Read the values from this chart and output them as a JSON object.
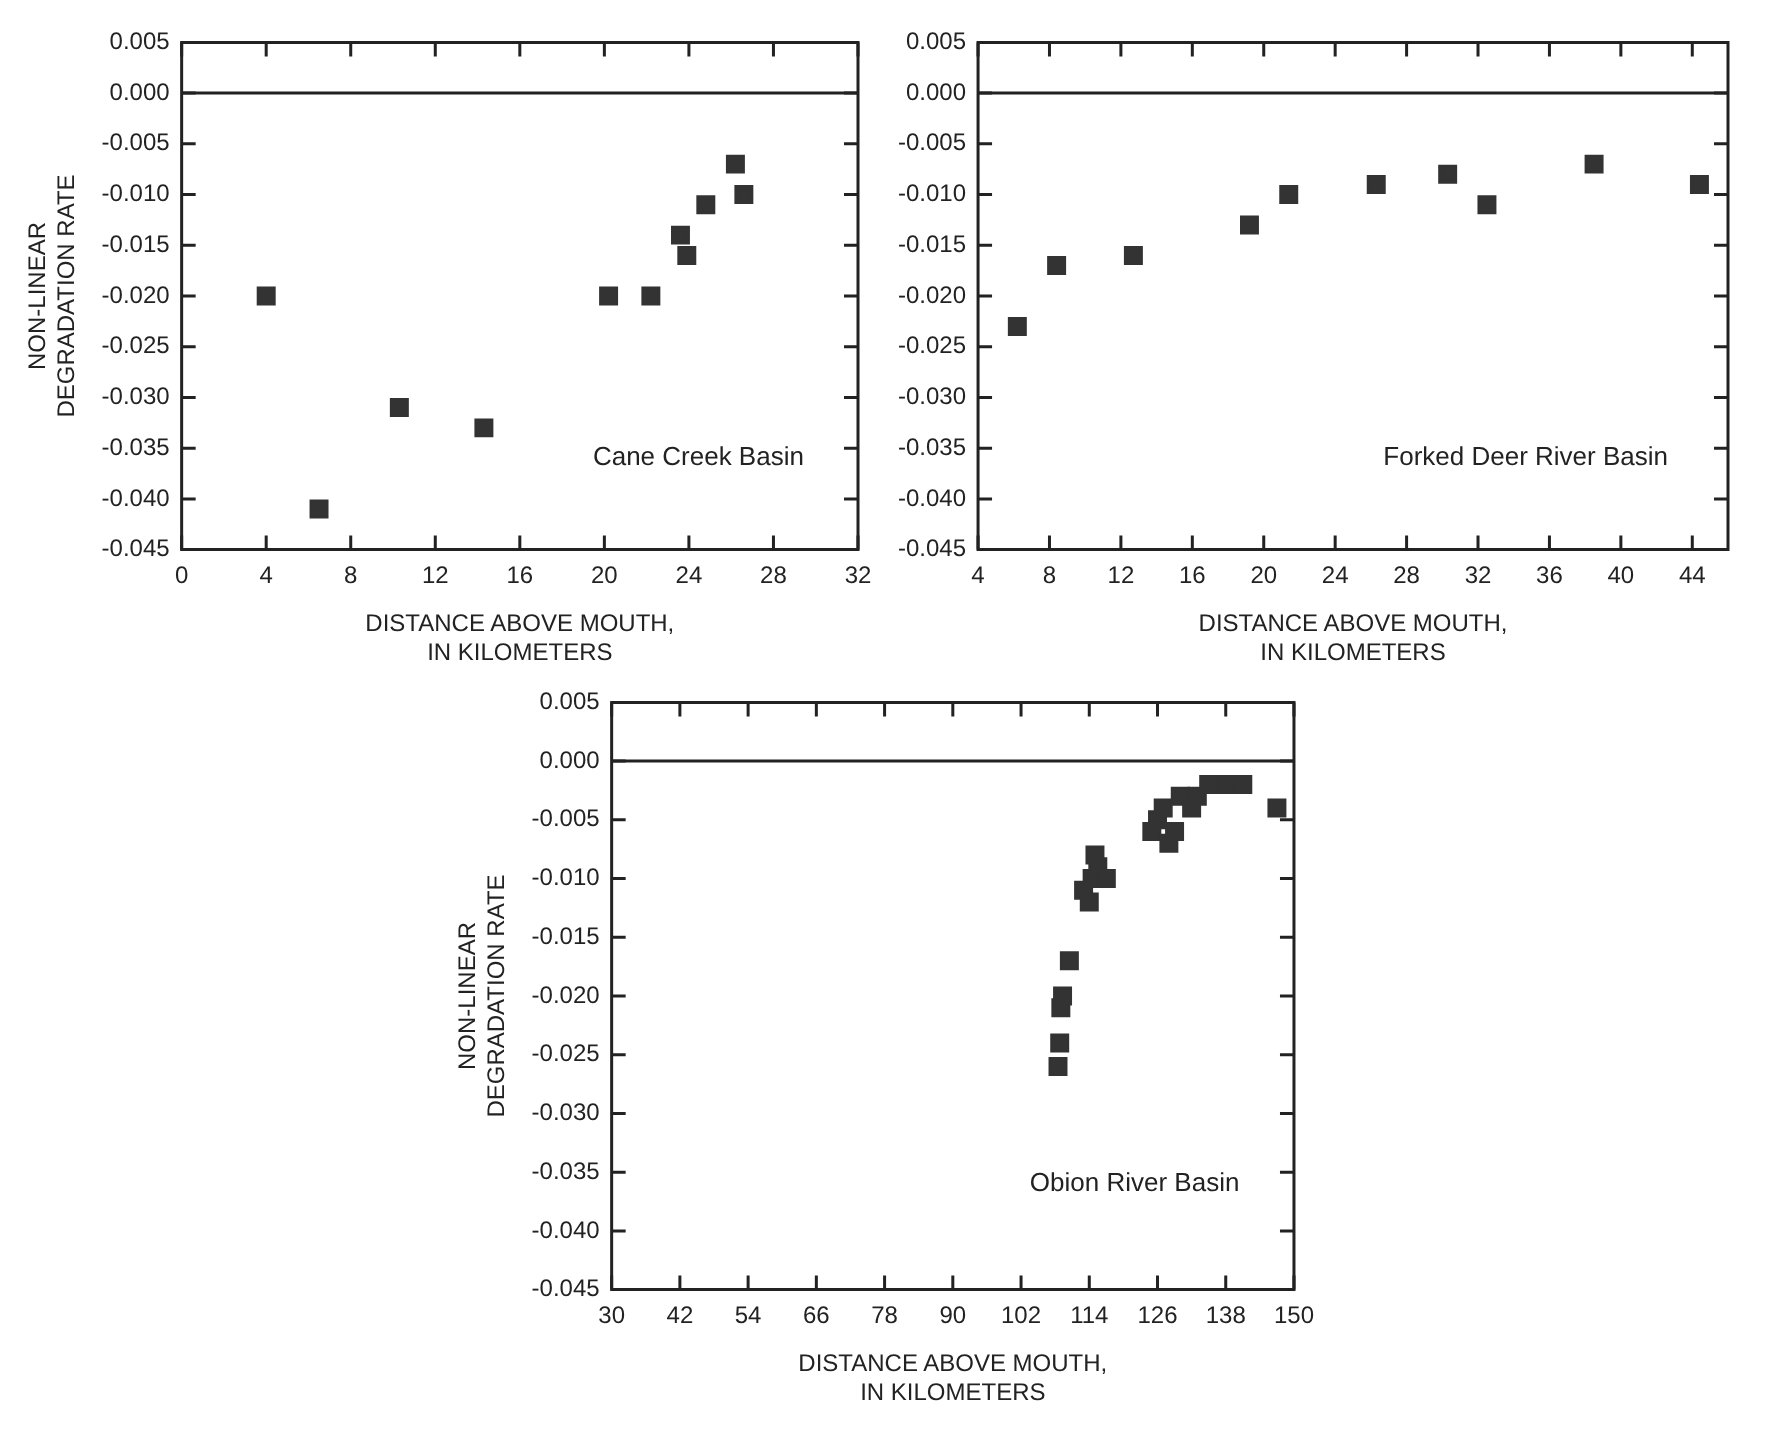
{
  "chart_data": [
    {
      "type": "scatter",
      "ylabel": "NON-LINEAR DEGRADATION RATE",
      "xlabel": "DISTANCE ABOVE MOUTH, IN KILOMETERS",
      "annotations": [
        "Cane Creek Basin"
      ],
      "marker": "square",
      "grid": false,
      "legend": false,
      "xlim": [
        0,
        32
      ],
      "xticks": [
        0,
        4,
        8,
        12,
        16,
        20,
        24,
        28,
        32
      ],
      "ylim": [
        -0.045,
        0.005
      ],
      "yticks": [
        {
          "value": 0.005,
          "label": "0.005"
        },
        {
          "value": 0,
          "label": "0.000"
        },
        {
          "value": -0.005,
          "label": "-0.005"
        },
        {
          "value": -0.01,
          "label": "-0.010"
        },
        {
          "value": -0.015,
          "label": "-0.015"
        },
        {
          "value": -0.02,
          "label": "-0.020"
        },
        {
          "value": -0.025,
          "label": "-0.025"
        },
        {
          "value": -0.03,
          "label": "-0.030"
        },
        {
          "value": -0.035,
          "label": "-0.035"
        },
        {
          "value": -0.04,
          "label": "-0.040"
        },
        {
          "value": -0.045,
          "label": "-0.045"
        }
      ],
      "ref_lines": [
        {
          "axis": "y",
          "value": 0
        }
      ],
      "series": [
        {
          "color": "#333333",
          "x": [
            4,
            6.5,
            10.3,
            14.3,
            20.2,
            22.2,
            23.6,
            23.9,
            24.8,
            26.2,
            26.6
          ],
          "values": [
            -0.02,
            -0.041,
            -0.031,
            -0.033,
            -0.02,
            -0.02,
            -0.014,
            -0.016,
            -0.011,
            -0.007,
            -0.01
          ]
        }
      ]
    },
    {
      "type": "scatter",
      "xlabel": "DISTANCE ABOVE MOUTH, IN KILOMETERS",
      "annotations": [
        "Forked Deer River Basin"
      ],
      "marker": "square",
      "grid": false,
      "legend": false,
      "xlim": [
        4,
        46
      ],
      "xticks": [
        4,
        8,
        12,
        16,
        20,
        24,
        28,
        32,
        36,
        40,
        44
      ],
      "ylim": [
        -0.045,
        0.005
      ],
      "yticks": [
        {
          "value": 0.005,
          "label": "0.005"
        },
        {
          "value": 0,
          "label": "0.000"
        },
        {
          "value": -0.005,
          "label": "-0.005"
        },
        {
          "value": -0.01,
          "label": "-0.010"
        },
        {
          "value": -0.015,
          "label": "-0.015"
        },
        {
          "value": -0.02,
          "label": "-0.020"
        },
        {
          "value": -0.025,
          "label": "-0.025"
        },
        {
          "value": -0.03,
          "label": "-0.030"
        },
        {
          "value": -0.035,
          "label": "-0.035"
        },
        {
          "value": -0.04,
          "label": "-0.040"
        },
        {
          "value": -0.045,
          "label": "-0.045"
        }
      ],
      "ref_lines": [
        {
          "axis": "y",
          "value": 0
        }
      ],
      "series": [
        {
          "color": "#333333",
          "x": [
            6.2,
            8.4,
            12.7,
            19.2,
            21.4,
            26.3,
            30.3,
            32.5,
            38.5,
            44.4
          ],
          "values": [
            -0.023,
            -0.017,
            -0.016,
            -0.013,
            -0.01,
            -0.009,
            -0.008,
            -0.011,
            -0.007,
            -0.009
          ]
        }
      ]
    },
    {
      "type": "scatter",
      "ylabel": "NON-LINEAR DEGRADATION RATE",
      "xlabel": "DISTANCE ABOVE MOUTH, IN KILOMETERS",
      "annotations": [
        "Obion River Basin"
      ],
      "marker": "square",
      "grid": false,
      "legend": false,
      "xlim": [
        30,
        150
      ],
      "xticks": [
        30,
        42,
        54,
        66,
        78,
        90,
        102,
        114,
        126,
        138,
        150
      ],
      "ylim": [
        -0.045,
        0.005
      ],
      "yticks": [
        {
          "value": 0.005,
          "label": "0.005"
        },
        {
          "value": 0,
          "label": "0.000"
        },
        {
          "value": -0.005,
          "label": "-0.005"
        },
        {
          "value": -0.01,
          "label": "-0.010"
        },
        {
          "value": -0.015,
          "label": "-0.015"
        },
        {
          "value": -0.02,
          "label": "-0.020"
        },
        {
          "value": -0.025,
          "label": "-0.025"
        },
        {
          "value": -0.03,
          "label": "-0.030"
        },
        {
          "value": -0.035,
          "label": "-0.035"
        },
        {
          "value": -0.04,
          "label": "-0.040"
        },
        {
          "value": -0.045,
          "label": "-0.045"
        }
      ],
      "ref_lines": [
        {
          "axis": "y",
          "value": 0
        }
      ],
      "series": [
        {
          "color": "#333333",
          "x": [
            108.5,
            108.8,
            109,
            109.3,
            110.5,
            113,
            114,
            114.5,
            115,
            115.5,
            117,
            125,
            126,
            127,
            128,
            129,
            130,
            132,
            133,
            135,
            138,
            141,
            147
          ],
          "values": [
            -0.026,
            -0.024,
            -0.021,
            -0.02,
            -0.017,
            -0.011,
            -0.012,
            -0.01,
            -0.008,
            -0.009,
            -0.01,
            -0.006,
            -0.005,
            -0.004,
            -0.007,
            -0.006,
            -0.003,
            -0.004,
            -0.003,
            -0.002,
            -0.002,
            -0.002,
            -0.004
          ]
        }
      ]
    }
  ]
}
